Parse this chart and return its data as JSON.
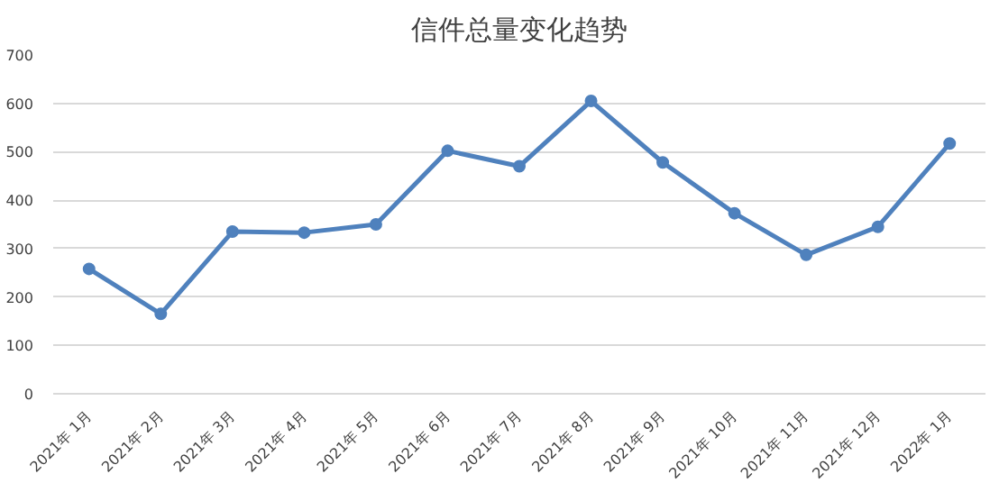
{
  "chart_data": {
    "type": "line",
    "title": "信件总量变化趋势",
    "categories": [
      "2021年 1月",
      "2021年 2月",
      "2021年 3月",
      "2021年 4月",
      "2021年 5月",
      "2021年 6月",
      "2021年 7月",
      "2021年 8月",
      "2021年 9月",
      "2021年 10月",
      "2021年 11月",
      "2021年 12月",
      "2022年 1月"
    ],
    "series": [
      {
        "color": "#4f81bd",
        "values": [
          258,
          165,
          335,
          333,
          350,
          502,
          470,
          605,
          478,
          373,
          287,
          345,
          517
        ]
      }
    ],
    "ylim": [
      0,
      700
    ],
    "yticks": [
      0,
      100,
      200,
      300,
      400,
      500,
      600,
      700
    ],
    "grid": "y",
    "marker": "circle",
    "line_style": "solid"
  }
}
